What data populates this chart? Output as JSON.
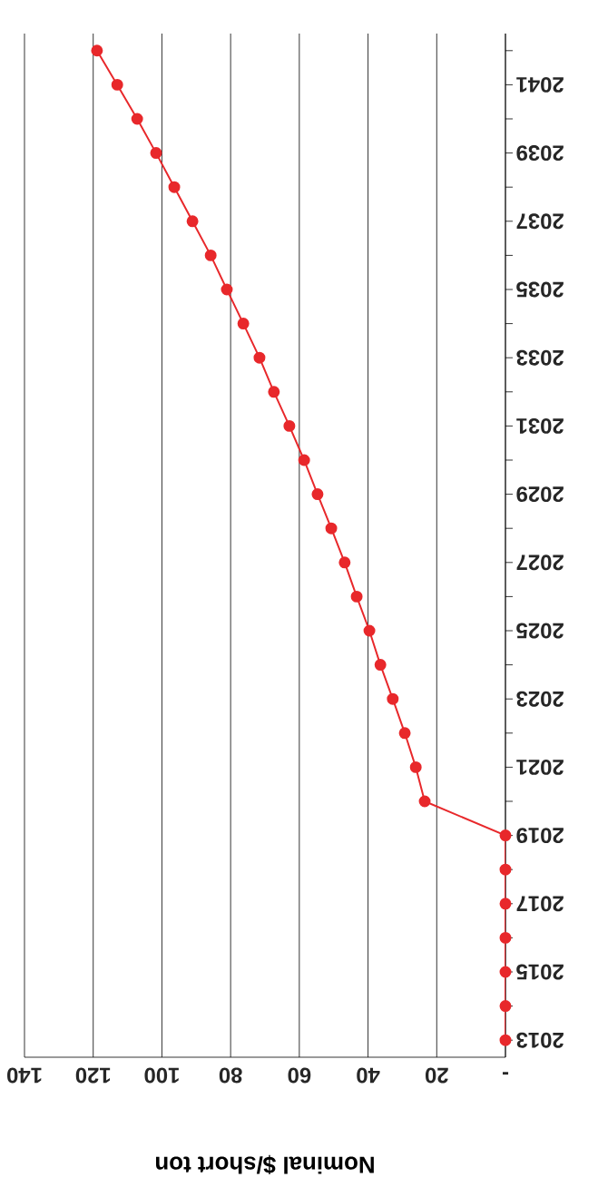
{
  "chart_data": {
    "type": "line",
    "orientation": "horizontal",
    "xlabel": "Nominal $/short ton",
    "x": [
      2013,
      2014,
      2015,
      2016,
      2017,
      2018,
      2019,
      2020,
      2021,
      2022,
      2023,
      2024,
      2025,
      2026,
      2027,
      2028,
      2029,
      2030,
      2031,
      2032,
      2033,
      2034,
      2035,
      2036,
      2037,
      2038,
      2039,
      2040,
      2041,
      2042
    ],
    "series": [
      {
        "color": "#e8282b",
        "values": [
          0,
          0,
          0,
          0,
          0,
          0,
          0,
          23.5,
          26.1,
          29.3,
          32.8,
          36.4,
          39.6,
          43.3,
          46.8,
          50.7,
          54.7,
          58.6,
          62.9,
          67.4,
          71.6,
          76.3,
          81.1,
          85.8,
          91.1,
          96.4,
          101.7,
          107.2,
          113.0,
          118.9
        ]
      }
    ],
    "xlim": [
      140,
      0
    ],
    "xticks": [
      140,
      120,
      100,
      80,
      60,
      40,
      20,
      {
        "value": 0,
        "label": "-"
      }
    ],
    "ylim": [
      2012.5,
      2042.5
    ],
    "yticks": [
      2013,
      {
        "value": 2014,
        "label": null
      },
      2015,
      {
        "value": 2016,
        "label": null
      },
      2017,
      {
        "value": 2018,
        "label": null
      },
      2019,
      {
        "value": 2020,
        "label": null
      },
      2021,
      {
        "value": 2022,
        "label": null
      },
      2023,
      {
        "value": 2024,
        "label": null
      },
      2025,
      {
        "value": 2026,
        "label": null
      },
      2027,
      {
        "value": 2028,
        "label": null
      },
      2029,
      {
        "value": 2030,
        "label": null
      },
      2031,
      {
        "value": 2032,
        "label": null
      },
      2033,
      {
        "value": 2034,
        "label": null
      },
      2035,
      {
        "value": 2036,
        "label": null
      },
      2037,
      {
        "value": 2038,
        "label": null
      },
      2039,
      {
        "value": 2040,
        "label": null
      },
      2041,
      {
        "value": 2042,
        "label": null
      }
    ],
    "grid": "x",
    "marker": "circle",
    "line_style": "solid"
  }
}
